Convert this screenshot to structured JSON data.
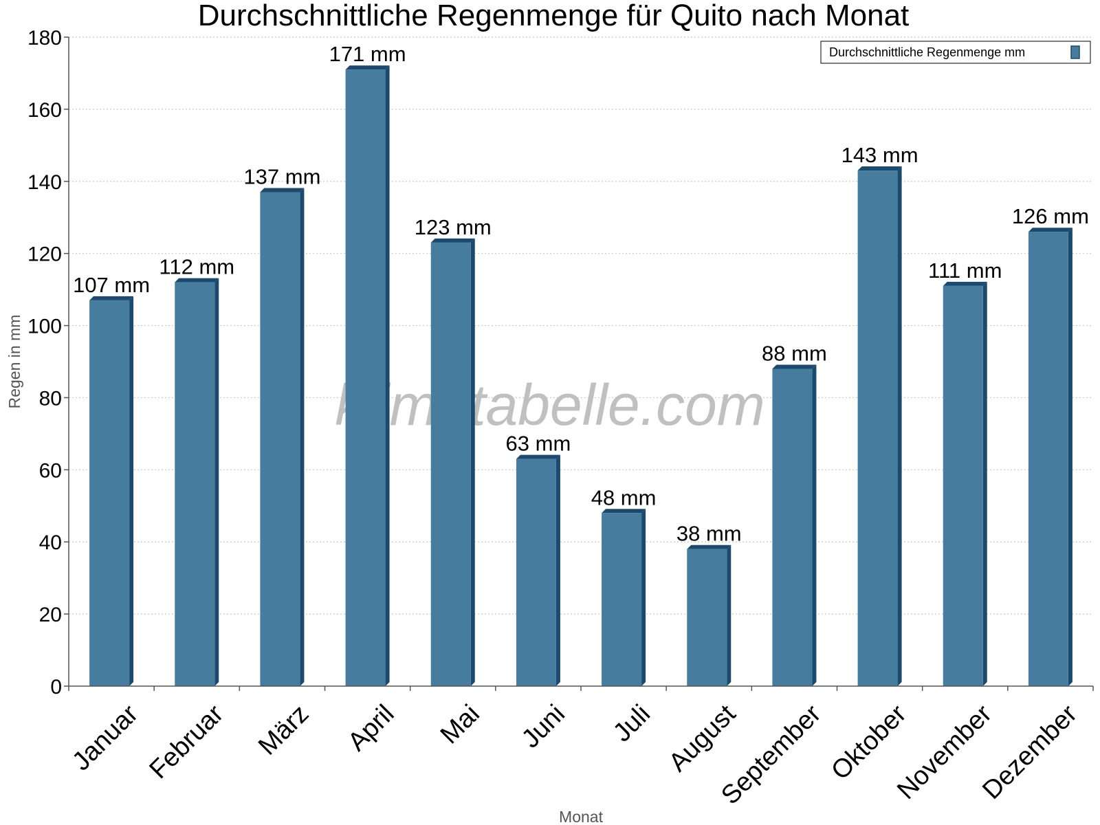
{
  "chart_data": {
    "type": "bar",
    "title": "Durchschnittliche Regenmenge für Quito nach Monat",
    "xlabel": "Monat",
    "ylabel": "Regen in mm",
    "categories": [
      "Januar",
      "Februar",
      "März",
      "April",
      "Mai",
      "Juni",
      "Juli",
      "August",
      "September",
      "Oktober",
      "November",
      "Dezember"
    ],
    "series": [
      {
        "name": "Durchschnittliche Regenmenge mm",
        "values": [
          107,
          112,
          137,
          171,
          123,
          63,
          48,
          38,
          88,
          143,
          111,
          126
        ]
      }
    ],
    "data_labels": [
      "107 mm",
      "112 mm",
      "137 mm",
      "171 mm",
      "123 mm",
      "63 mm",
      "48 mm",
      "38 mm",
      "88 mm",
      "143 mm",
      "111 mm",
      "126 mm"
    ],
    "ylim": [
      0,
      180
    ],
    "yticks": [
      0,
      20,
      40,
      60,
      80,
      100,
      120,
      140,
      160,
      180
    ],
    "grid": true,
    "legend": "top-right",
    "watermark": "klimatabelle.com"
  },
  "colors": {
    "bar_face": "#467c9e",
    "bar_side": "#1c4a6e",
    "bar_top": "#2e6288",
    "grid": "#c8c8c8",
    "axis": "#555555",
    "axis_title": "#555555",
    "watermark": "#c0c0c0"
  }
}
